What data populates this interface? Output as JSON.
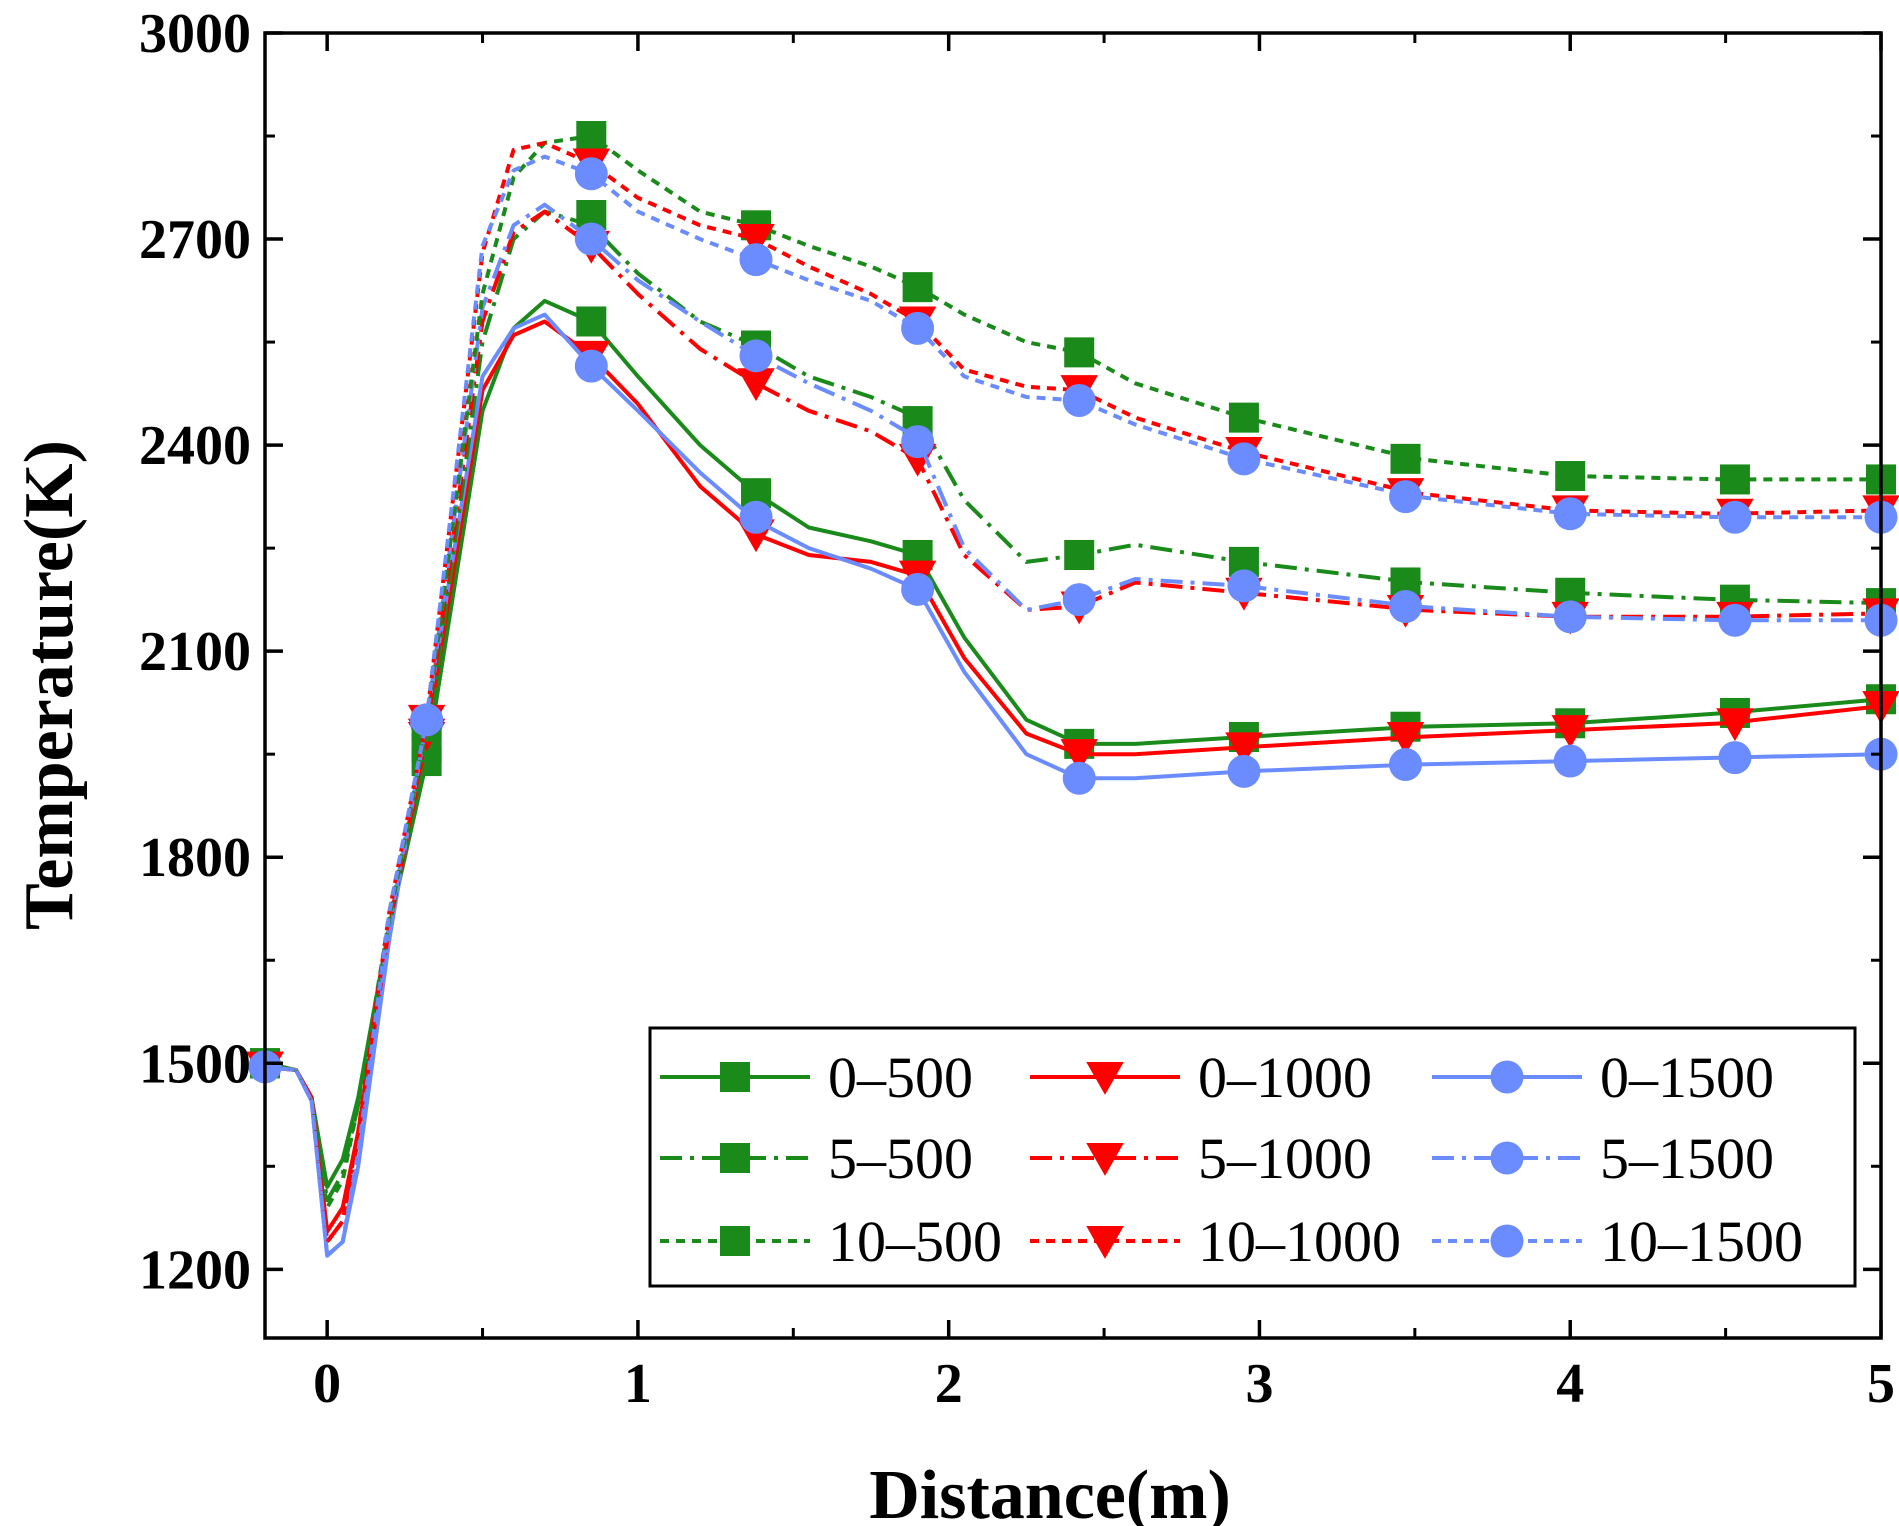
{
  "chart_data": {
    "type": "line",
    "title": "",
    "xlabel": "Distance(m)",
    "ylabel": "Temperature(K)",
    "xlim": [
      -0.2,
      5.0
    ],
    "ylim": [
      1100,
      3000
    ],
    "xticks": [
      0,
      1,
      2,
      3,
      4,
      5
    ],
    "xtick_labels": [
      "0",
      "1",
      "2",
      "3",
      "4",
      "5"
    ],
    "yticks": [
      1200,
      1500,
      1800,
      2100,
      2400,
      2700,
      3000
    ],
    "ytick_labels": [
      "1200",
      "1500",
      "1800",
      "2100",
      "2400",
      "2700",
      "3000"
    ],
    "grid": false,
    "legend_position": "bottom-right",
    "colors": {
      "green": "#1a8a1a",
      "red": "#ff0000",
      "blue": "#6b8cff"
    },
    "series": [
      {
        "name": "0–500",
        "color": "#1a8a1a",
        "marker": "square",
        "dash": "solid",
        "x": [
          -0.2,
          -0.1,
          -0.05,
          0.0,
          0.05,
          0.1,
          0.2,
          0.32,
          0.5,
          0.6,
          0.7,
          0.85,
          1.0,
          1.2,
          1.38,
          1.55,
          1.75,
          1.9,
          2.05,
          2.25,
          2.42,
          2.6,
          2.95,
          3.5,
          4.0,
          4.5,
          5.0
        ],
        "y": [
          1500,
          1490,
          1450,
          1320,
          1360,
          1450,
          1700,
          1940,
          2450,
          2570,
          2610,
          2580,
          2500,
          2400,
          2330,
          2280,
          2260,
          2240,
          2120,
          2000,
          1965,
          1965,
          1975,
          1990,
          1995,
          2010,
          2030
        ],
        "marker_x": [
          -0.2,
          0.32,
          0.85,
          1.38,
          1.9,
          2.42,
          2.95,
          3.47,
          4.0,
          4.53,
          5.0
        ],
        "marker_y": [
          1500,
          1940,
          2580,
          2330,
          2240,
          1965,
          1975,
          1990,
          1995,
          2010,
          2030
        ]
      },
      {
        "name": "0–1000",
        "color": "#ff0000",
        "marker": "triangle-down",
        "dash": "solid",
        "x": [
          -0.2,
          -0.1,
          -0.05,
          0.0,
          0.05,
          0.1,
          0.2,
          0.32,
          0.5,
          0.6,
          0.7,
          0.85,
          1.0,
          1.2,
          1.38,
          1.55,
          1.75,
          1.9,
          2.05,
          2.25,
          2.42,
          2.6,
          2.95,
          3.5,
          4.0,
          4.5,
          5.0
        ],
        "y": [
          1495,
          1490,
          1450,
          1255,
          1290,
          1400,
          1690,
          1975,
          2480,
          2560,
          2580,
          2530,
          2460,
          2340,
          2270,
          2240,
          2230,
          2210,
          2090,
          1980,
          1950,
          1950,
          1960,
          1975,
          1985,
          1995,
          2020
        ],
        "marker_x": [
          -0.2,
          0.32,
          0.85,
          1.38,
          1.9,
          2.42,
          2.95,
          3.47,
          4.0,
          4.53,
          5.0
        ],
        "marker_y": [
          1495,
          1975,
          2530,
          2270,
          2210,
          1950,
          1960,
          1975,
          1985,
          1995,
          2020
        ]
      },
      {
        "name": "0–1500",
        "color": "#6b8cff",
        "marker": "circle",
        "dash": "solid",
        "x": [
          -0.2,
          -0.1,
          -0.05,
          0.0,
          0.05,
          0.1,
          0.2,
          0.32,
          0.5,
          0.6,
          0.7,
          0.85,
          1.0,
          1.2,
          1.38,
          1.55,
          1.75,
          1.9,
          2.05,
          2.25,
          2.42,
          2.6,
          2.95,
          3.5,
          4.0,
          4.5,
          5.0
        ],
        "y": [
          1495,
          1490,
          1445,
          1220,
          1240,
          1350,
          1680,
          2000,
          2500,
          2570,
          2590,
          2515,
          2450,
          2360,
          2290,
          2250,
          2220,
          2190,
          2070,
          1950,
          1915,
          1915,
          1925,
          1935,
          1940,
          1945,
          1950
        ],
        "marker_x": [
          -0.2,
          0.32,
          0.85,
          1.38,
          1.9,
          2.42,
          2.95,
          3.47,
          4.0,
          4.53,
          5.0
        ],
        "marker_y": [
          1495,
          2000,
          2515,
          2295,
          2190,
          1915,
          1925,
          1935,
          1940,
          1945,
          1950
        ]
      },
      {
        "name": "5–500",
        "color": "#1a8a1a",
        "marker": "square",
        "dash": "dashdot",
        "x": [
          -0.2,
          -0.1,
          -0.05,
          0.0,
          0.05,
          0.1,
          0.2,
          0.32,
          0.5,
          0.6,
          0.7,
          0.85,
          1.0,
          1.2,
          1.38,
          1.55,
          1.75,
          1.9,
          2.05,
          2.25,
          2.42,
          2.6,
          2.95,
          3.5,
          4.0,
          4.5,
          5.0
        ],
        "y": [
          1500,
          1490,
          1450,
          1300,
          1340,
          1440,
          1700,
          1960,
          2550,
          2700,
          2740,
          2720,
          2650,
          2580,
          2545,
          2500,
          2470,
          2440,
          2320,
          2230,
          2240,
          2255,
          2230,
          2200,
          2185,
          2175,
          2170
        ],
        "marker_x": [
          -0.2,
          0.32,
          0.85,
          1.38,
          1.9,
          2.42,
          2.95,
          3.47,
          4.0,
          4.53,
          5.0
        ],
        "marker_y": [
          1500,
          1960,
          2735,
          2545,
          2435,
          2240,
          2230,
          2200,
          2185,
          2175,
          2170
        ]
      },
      {
        "name": "5–1000",
        "color": "#ff0000",
        "marker": "triangle-down",
        "dash": "dashdot",
        "x": [
          -0.2,
          -0.1,
          -0.05,
          0.0,
          0.05,
          0.1,
          0.2,
          0.32,
          0.5,
          0.6,
          0.7,
          0.85,
          1.0,
          1.2,
          1.38,
          1.55,
          1.75,
          1.9,
          2.05,
          2.25,
          2.42,
          2.6,
          2.95,
          3.5,
          4.0,
          4.5,
          5.0
        ],
        "y": [
          1495,
          1490,
          1450,
          1240,
          1270,
          1390,
          1700,
          1980,
          2580,
          2710,
          2740,
          2690,
          2620,
          2540,
          2490,
          2450,
          2420,
          2380,
          2240,
          2160,
          2165,
          2200,
          2185,
          2160,
          2150,
          2150,
          2155
        ],
        "marker_x": [
          -0.2,
          0.32,
          0.85,
          1.38,
          1.9,
          2.42,
          2.95,
          3.47,
          4.0,
          4.53,
          5.0
        ],
        "marker_y": [
          1495,
          1980,
          2690,
          2490,
          2380,
          2165,
          2185,
          2160,
          2150,
          2150,
          2155
        ]
      },
      {
        "name": "5–1500",
        "color": "#6b8cff",
        "marker": "circle",
        "dash": "dashdot",
        "x": [
          -0.2,
          -0.1,
          -0.05,
          0.0,
          0.05,
          0.1,
          0.2,
          0.32,
          0.5,
          0.6,
          0.7,
          0.85,
          1.0,
          1.2,
          1.38,
          1.55,
          1.75,
          1.9,
          2.05,
          2.25,
          2.42,
          2.6,
          2.95,
          3.5,
          4.0,
          4.5,
          5.0
        ],
        "y": [
          1495,
          1490,
          1445,
          1220,
          1240,
          1360,
          1700,
          1995,
          2600,
          2720,
          2750,
          2700,
          2640,
          2580,
          2530,
          2490,
          2450,
          2410,
          2250,
          2160,
          2175,
          2205,
          2195,
          2165,
          2150,
          2145,
          2145
        ],
        "marker_x": [
          -0.2,
          0.32,
          0.85,
          1.38,
          1.9,
          2.42,
          2.95,
          3.47,
          4.0,
          4.53,
          5.0
        ],
        "marker_y": [
          1495,
          1995,
          2700,
          2530,
          2405,
          2175,
          2195,
          2165,
          2150,
          2145,
          2145
        ]
      },
      {
        "name": "10–500",
        "color": "#1a8a1a",
        "marker": "square",
        "dash": "dot",
        "x": [
          -0.2,
          -0.1,
          -0.05,
          0.0,
          0.05,
          0.1,
          0.2,
          0.32,
          0.5,
          0.6,
          0.7,
          0.85,
          1.0,
          1.2,
          1.38,
          1.55,
          1.75,
          1.9,
          2.05,
          2.25,
          2.42,
          2.6,
          2.95,
          3.5,
          4.0,
          4.5,
          5.0
        ],
        "y": [
          1500,
          1490,
          1450,
          1290,
          1330,
          1440,
          1710,
          1990,
          2620,
          2790,
          2840,
          2850,
          2800,
          2740,
          2720,
          2690,
          2660,
          2630,
          2590,
          2550,
          2535,
          2490,
          2440,
          2380,
          2355,
          2350,
          2350
        ],
        "marker_x": [
          -0.2,
          0.32,
          0.85,
          1.38,
          1.9,
          2.42,
          2.95,
          3.47,
          4.0,
          4.53,
          5.0
        ],
        "marker_y": [
          1500,
          1990,
          2850,
          2720,
          2630,
          2535,
          2440,
          2380,
          2355,
          2350,
          2350
        ]
      },
      {
        "name": "10–1000",
        "color": "#ff0000",
        "marker": "triangle-down",
        "dash": "dot",
        "x": [
          -0.2,
          -0.1,
          -0.05,
          0.0,
          0.05,
          0.1,
          0.2,
          0.32,
          0.5,
          0.6,
          0.7,
          0.85,
          1.0,
          1.2,
          1.38,
          1.55,
          1.75,
          1.9,
          2.05,
          2.25,
          2.42,
          2.6,
          2.95,
          3.5,
          4.0,
          4.5,
          5.0
        ],
        "y": [
          1495,
          1490,
          1450,
          1240,
          1270,
          1400,
          1720,
          2000,
          2680,
          2830,
          2840,
          2810,
          2760,
          2720,
          2700,
          2660,
          2620,
          2580,
          2510,
          2485,
          2480,
          2440,
          2390,
          2330,
          2305,
          2300,
          2305
        ],
        "marker_x": [
          -0.2,
          0.32,
          0.85,
          1.38,
          1.9,
          2.42,
          2.95,
          3.47,
          4.0,
          4.53,
          5.0
        ],
        "marker_y": [
          1495,
          2000,
          2810,
          2700,
          2580,
          2480,
          2390,
          2330,
          2305,
          2300,
          2305
        ]
      },
      {
        "name": "10–1500",
        "color": "#6b8cff",
        "marker": "circle",
        "dash": "dot",
        "x": [
          -0.2,
          -0.1,
          -0.05,
          0.0,
          0.05,
          0.1,
          0.2,
          0.32,
          0.5,
          0.6,
          0.7,
          0.85,
          1.0,
          1.2,
          1.38,
          1.55,
          1.75,
          1.9,
          2.05,
          2.25,
          2.42,
          2.6,
          2.95,
          3.5,
          4.0,
          4.5,
          5.0
        ],
        "y": [
          1495,
          1490,
          1445,
          1220,
          1240,
          1370,
          1720,
          2000,
          2690,
          2800,
          2820,
          2795,
          2740,
          2700,
          2670,
          2640,
          2610,
          2570,
          2500,
          2470,
          2465,
          2430,
          2380,
          2325,
          2300,
          2295,
          2295
        ],
        "marker_x": [
          -0.2,
          0.32,
          0.85,
          1.38,
          1.9,
          2.42,
          2.95,
          3.47,
          4.0,
          4.53,
          5.0
        ],
        "marker_y": [
          1495,
          2000,
          2795,
          2670,
          2570,
          2465,
          2380,
          2325,
          2300,
          2295,
          2295
        ]
      }
    ]
  }
}
